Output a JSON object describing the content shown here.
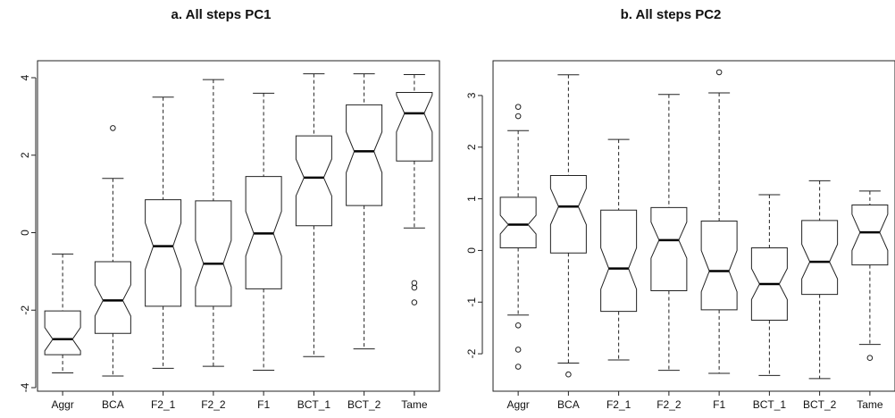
{
  "chart_data": [
    {
      "type": "boxplot",
      "title": "a. All steps PC1",
      "categories": [
        "Aggr",
        "BCA",
        "F2_1",
        "F2_2",
        "F1",
        "BCT_1",
        "BCT_2",
        "Tame"
      ],
      "ylim": [
        -4,
        4
      ],
      "yticks": [
        -4,
        -2,
        0,
        2,
        4
      ],
      "notched": true,
      "boxes": [
        {
          "category": "Aggr",
          "whisker_low": -3.62,
          "q1": -3.15,
          "median": -2.75,
          "q3": -2.02,
          "whisker_high": -0.55,
          "notch_low": -3.05,
          "notch_high": -2.45,
          "outliers": []
        },
        {
          "category": "BCA",
          "whisker_low": -3.7,
          "q1": -2.6,
          "median": -1.75,
          "q3": -0.75,
          "whisker_high": 1.4,
          "notch_low": -2.15,
          "notch_high": -1.35,
          "outliers": [
            2.7
          ]
        },
        {
          "category": "F2_1",
          "whisker_low": -3.5,
          "q1": -1.9,
          "median": -0.35,
          "q3": 0.85,
          "whisker_high": 3.5,
          "notch_low": -0.95,
          "notch_high": 0.25,
          "outliers": []
        },
        {
          "category": "F2_2",
          "whisker_low": -3.45,
          "q1": -1.9,
          "median": -0.8,
          "q3": 0.82,
          "whisker_high": 3.95,
          "notch_low": -1.4,
          "notch_high": -0.2,
          "outliers": []
        },
        {
          "category": "F1",
          "whisker_low": -3.55,
          "q1": -1.45,
          "median": -0.02,
          "q3": 1.45,
          "whisker_high": 3.6,
          "notch_low": -0.6,
          "notch_high": 0.55,
          "outliers": []
        },
        {
          "category": "BCT_1",
          "whisker_low": -3.2,
          "q1": 0.18,
          "median": 1.42,
          "q3": 2.5,
          "whisker_high": 4.1,
          "notch_low": 0.95,
          "notch_high": 1.9,
          "outliers": []
        },
        {
          "category": "BCT_2",
          "whisker_low": -3.0,
          "q1": 0.7,
          "median": 2.1,
          "q3": 3.3,
          "whisker_high": 4.1,
          "notch_low": 1.55,
          "notch_high": 2.6,
          "outliers": []
        },
        {
          "category": "Tame",
          "whisker_low": 0.12,
          "q1": 1.85,
          "median": 3.08,
          "q3": 3.62,
          "whisker_high": 4.08,
          "notch_low": 2.6,
          "notch_high": 3.55,
          "outliers": [
            -1.3,
            -1.42,
            -1.8
          ]
        }
      ]
    },
    {
      "type": "boxplot",
      "title": "b. All steps PC2",
      "categories": [
        "Aggr",
        "BCA",
        "F2_1",
        "F2_2",
        "F1",
        "BCT_1",
        "BCT_2",
        "Tame"
      ],
      "ylim": [
        -2.5,
        3.5
      ],
      "yticks": [
        -2,
        -1,
        0,
        1,
        2,
        3
      ],
      "notched": true,
      "boxes": [
        {
          "category": "Aggr",
          "whisker_low": -1.25,
          "q1": 0.05,
          "median": 0.5,
          "q3": 1.03,
          "whisker_high": 2.32,
          "notch_low": 0.32,
          "notch_high": 0.68,
          "outliers": [
            2.78,
            2.6,
            -1.45,
            -1.92,
            -2.25
          ]
        },
        {
          "category": "BCA",
          "whisker_low": -2.18,
          "q1": -0.05,
          "median": 0.85,
          "q3": 1.45,
          "whisker_high": 3.4,
          "notch_low": 0.5,
          "notch_high": 1.2,
          "outliers": [
            -2.4
          ]
        },
        {
          "category": "F2_1",
          "whisker_low": -2.12,
          "q1": -1.18,
          "median": -0.35,
          "q3": 0.78,
          "whisker_high": 2.15,
          "notch_low": -0.75,
          "notch_high": 0.05,
          "outliers": []
        },
        {
          "category": "F2_2",
          "whisker_low": -2.32,
          "q1": -0.78,
          "median": 0.2,
          "q3": 0.83,
          "whisker_high": 3.02,
          "notch_low": -0.15,
          "notch_high": 0.55,
          "outliers": []
        },
        {
          "category": "F1",
          "whisker_low": -2.38,
          "q1": -1.15,
          "median": -0.4,
          "q3": 0.57,
          "whisker_high": 3.05,
          "notch_low": -0.8,
          "notch_high": 0.0,
          "outliers": [
            3.45
          ]
        },
        {
          "category": "BCT_1",
          "whisker_low": -2.42,
          "q1": -1.35,
          "median": -0.65,
          "q3": 0.05,
          "whisker_high": 1.08,
          "notch_low": -0.95,
          "notch_high": -0.35,
          "outliers": []
        },
        {
          "category": "BCT_2",
          "whisker_low": -2.48,
          "q1": -0.85,
          "median": -0.22,
          "q3": 0.58,
          "whisker_high": 1.35,
          "notch_low": -0.55,
          "notch_high": 0.12,
          "outliers": []
        },
        {
          "category": "Tame",
          "whisker_low": -1.82,
          "q1": -0.28,
          "median": 0.35,
          "q3": 0.88,
          "whisker_high": 1.15,
          "notch_low": 0.0,
          "notch_high": 0.7,
          "outliers": [
            -2.08
          ]
        }
      ]
    }
  ]
}
